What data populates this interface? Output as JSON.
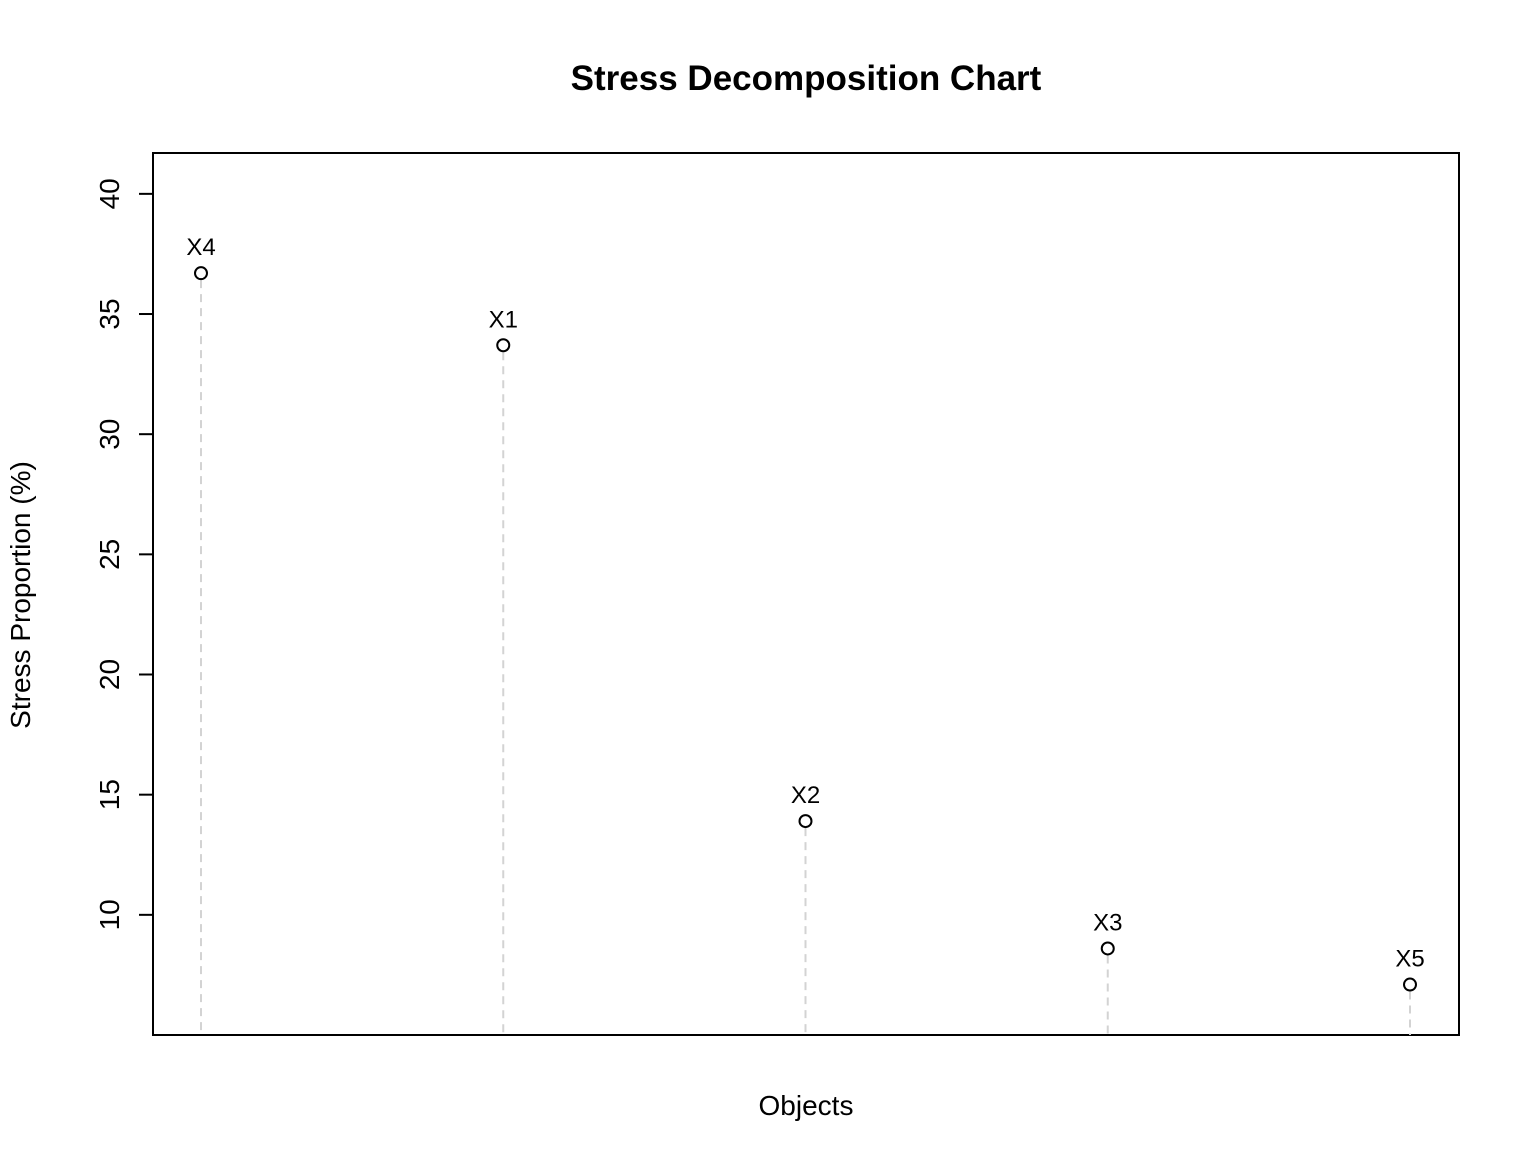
{
  "chart_data": {
    "type": "scatter",
    "title": "Stress Decomposition Chart",
    "xlabel": "Objects",
    "ylabel": "Stress Proportion (%)",
    "categories": [
      "X4",
      "X1",
      "X2",
      "X3",
      "X5"
    ],
    "values": [
      36.7,
      33.7,
      13.9,
      8.6,
      7.1
    ],
    "ylim": [
      5,
      41.7
    ],
    "yticks": [
      10,
      15,
      20,
      25,
      30,
      35,
      40
    ],
    "xticks": [],
    "grid": false,
    "legend": "none",
    "marker": "open-circle",
    "drop_lines": "dashed",
    "colors": {
      "points": "#000000",
      "drop_lines": "#d3d3d3",
      "frame": "#000000"
    }
  }
}
